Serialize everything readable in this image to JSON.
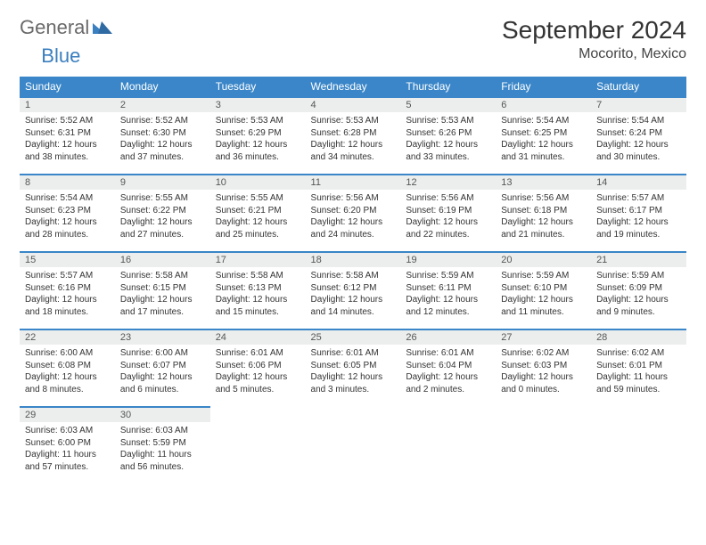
{
  "brand": {
    "part1": "General",
    "part2": "Blue"
  },
  "title": "September 2024",
  "location": "Mocorito, Mexico",
  "colors": {
    "header_bg": "#3a86c8",
    "header_text": "#ffffff",
    "daynum_bg": "#eceeee",
    "border": "#3a86c8",
    "brand_gray": "#6a6a6a",
    "brand_blue": "#3a7fbf"
  },
  "dayNames": [
    "Sunday",
    "Monday",
    "Tuesday",
    "Wednesday",
    "Thursday",
    "Friday",
    "Saturday"
  ],
  "weeks": [
    [
      {
        "n": "1",
        "sr": "Sunrise: 5:52 AM",
        "ss": "Sunset: 6:31 PM",
        "d1": "Daylight: 12 hours",
        "d2": "and 38 minutes."
      },
      {
        "n": "2",
        "sr": "Sunrise: 5:52 AM",
        "ss": "Sunset: 6:30 PM",
        "d1": "Daylight: 12 hours",
        "d2": "and 37 minutes."
      },
      {
        "n": "3",
        "sr": "Sunrise: 5:53 AM",
        "ss": "Sunset: 6:29 PM",
        "d1": "Daylight: 12 hours",
        "d2": "and 36 minutes."
      },
      {
        "n": "4",
        "sr": "Sunrise: 5:53 AM",
        "ss": "Sunset: 6:28 PM",
        "d1": "Daylight: 12 hours",
        "d2": "and 34 minutes."
      },
      {
        "n": "5",
        "sr": "Sunrise: 5:53 AM",
        "ss": "Sunset: 6:26 PM",
        "d1": "Daylight: 12 hours",
        "d2": "and 33 minutes."
      },
      {
        "n": "6",
        "sr": "Sunrise: 5:54 AM",
        "ss": "Sunset: 6:25 PM",
        "d1": "Daylight: 12 hours",
        "d2": "and 31 minutes."
      },
      {
        "n": "7",
        "sr": "Sunrise: 5:54 AM",
        "ss": "Sunset: 6:24 PM",
        "d1": "Daylight: 12 hours",
        "d2": "and 30 minutes."
      }
    ],
    [
      {
        "n": "8",
        "sr": "Sunrise: 5:54 AM",
        "ss": "Sunset: 6:23 PM",
        "d1": "Daylight: 12 hours",
        "d2": "and 28 minutes."
      },
      {
        "n": "9",
        "sr": "Sunrise: 5:55 AM",
        "ss": "Sunset: 6:22 PM",
        "d1": "Daylight: 12 hours",
        "d2": "and 27 minutes."
      },
      {
        "n": "10",
        "sr": "Sunrise: 5:55 AM",
        "ss": "Sunset: 6:21 PM",
        "d1": "Daylight: 12 hours",
        "d2": "and 25 minutes."
      },
      {
        "n": "11",
        "sr": "Sunrise: 5:56 AM",
        "ss": "Sunset: 6:20 PM",
        "d1": "Daylight: 12 hours",
        "d2": "and 24 minutes."
      },
      {
        "n": "12",
        "sr": "Sunrise: 5:56 AM",
        "ss": "Sunset: 6:19 PM",
        "d1": "Daylight: 12 hours",
        "d2": "and 22 minutes."
      },
      {
        "n": "13",
        "sr": "Sunrise: 5:56 AM",
        "ss": "Sunset: 6:18 PM",
        "d1": "Daylight: 12 hours",
        "d2": "and 21 minutes."
      },
      {
        "n": "14",
        "sr": "Sunrise: 5:57 AM",
        "ss": "Sunset: 6:17 PM",
        "d1": "Daylight: 12 hours",
        "d2": "and 19 minutes."
      }
    ],
    [
      {
        "n": "15",
        "sr": "Sunrise: 5:57 AM",
        "ss": "Sunset: 6:16 PM",
        "d1": "Daylight: 12 hours",
        "d2": "and 18 minutes."
      },
      {
        "n": "16",
        "sr": "Sunrise: 5:58 AM",
        "ss": "Sunset: 6:15 PM",
        "d1": "Daylight: 12 hours",
        "d2": "and 17 minutes."
      },
      {
        "n": "17",
        "sr": "Sunrise: 5:58 AM",
        "ss": "Sunset: 6:13 PM",
        "d1": "Daylight: 12 hours",
        "d2": "and 15 minutes."
      },
      {
        "n": "18",
        "sr": "Sunrise: 5:58 AM",
        "ss": "Sunset: 6:12 PM",
        "d1": "Daylight: 12 hours",
        "d2": "and 14 minutes."
      },
      {
        "n": "19",
        "sr": "Sunrise: 5:59 AM",
        "ss": "Sunset: 6:11 PM",
        "d1": "Daylight: 12 hours",
        "d2": "and 12 minutes."
      },
      {
        "n": "20",
        "sr": "Sunrise: 5:59 AM",
        "ss": "Sunset: 6:10 PM",
        "d1": "Daylight: 12 hours",
        "d2": "and 11 minutes."
      },
      {
        "n": "21",
        "sr": "Sunrise: 5:59 AM",
        "ss": "Sunset: 6:09 PM",
        "d1": "Daylight: 12 hours",
        "d2": "and 9 minutes."
      }
    ],
    [
      {
        "n": "22",
        "sr": "Sunrise: 6:00 AM",
        "ss": "Sunset: 6:08 PM",
        "d1": "Daylight: 12 hours",
        "d2": "and 8 minutes."
      },
      {
        "n": "23",
        "sr": "Sunrise: 6:00 AM",
        "ss": "Sunset: 6:07 PM",
        "d1": "Daylight: 12 hours",
        "d2": "and 6 minutes."
      },
      {
        "n": "24",
        "sr": "Sunrise: 6:01 AM",
        "ss": "Sunset: 6:06 PM",
        "d1": "Daylight: 12 hours",
        "d2": "and 5 minutes."
      },
      {
        "n": "25",
        "sr": "Sunrise: 6:01 AM",
        "ss": "Sunset: 6:05 PM",
        "d1": "Daylight: 12 hours",
        "d2": "and 3 minutes."
      },
      {
        "n": "26",
        "sr": "Sunrise: 6:01 AM",
        "ss": "Sunset: 6:04 PM",
        "d1": "Daylight: 12 hours",
        "d2": "and 2 minutes."
      },
      {
        "n": "27",
        "sr": "Sunrise: 6:02 AM",
        "ss": "Sunset: 6:03 PM",
        "d1": "Daylight: 12 hours",
        "d2": "and 0 minutes."
      },
      {
        "n": "28",
        "sr": "Sunrise: 6:02 AM",
        "ss": "Sunset: 6:01 PM",
        "d1": "Daylight: 11 hours",
        "d2": "and 59 minutes."
      }
    ],
    [
      {
        "n": "29",
        "sr": "Sunrise: 6:03 AM",
        "ss": "Sunset: 6:00 PM",
        "d1": "Daylight: 11 hours",
        "d2": "and 57 minutes."
      },
      {
        "n": "30",
        "sr": "Sunrise: 6:03 AM",
        "ss": "Sunset: 5:59 PM",
        "d1": "Daylight: 11 hours",
        "d2": "and 56 minutes."
      },
      null,
      null,
      null,
      null,
      null
    ]
  ]
}
